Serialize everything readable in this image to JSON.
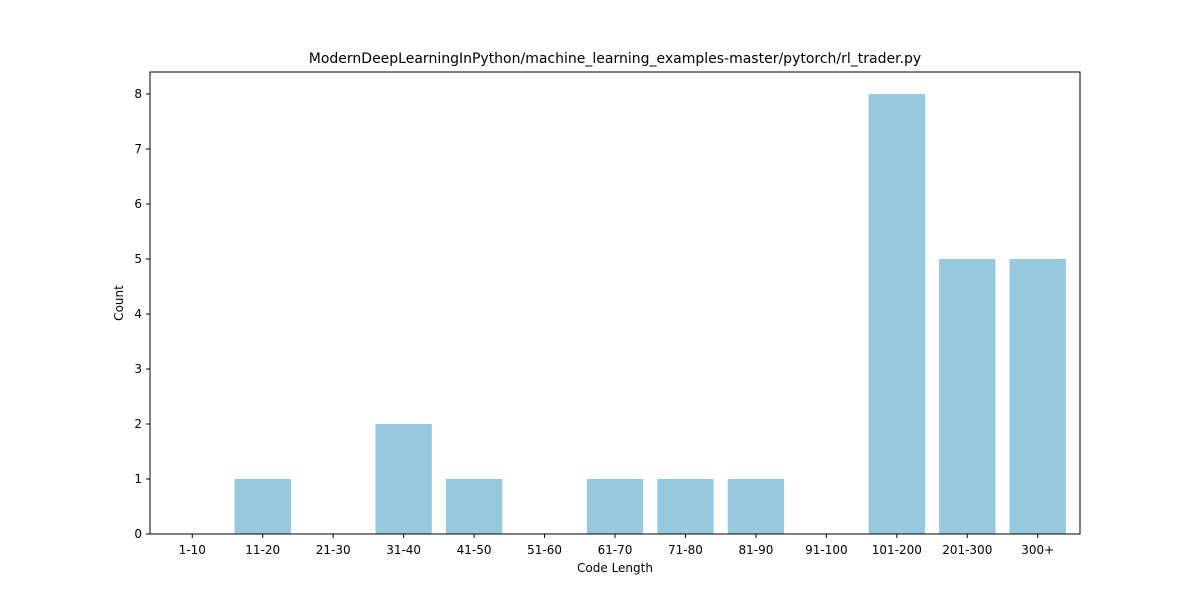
{
  "chart_data": {
    "type": "bar",
    "title": "ModernDeepLearningInPython/machine_learning_examples-master/pytorch/rl_trader.py",
    "xlabel": "Code Length",
    "ylabel": "Count",
    "categories": [
      "1-10",
      "11-20",
      "21-30",
      "31-40",
      "41-50",
      "51-60",
      "61-70",
      "71-80",
      "81-90",
      "91-100",
      "101-200",
      "201-300",
      "300+"
    ],
    "values": [
      0,
      1,
      0,
      2,
      1,
      0,
      1,
      1,
      1,
      0,
      8,
      5,
      5
    ],
    "ylim": [
      0,
      8.4
    ],
    "yticks": [
      0,
      1,
      2,
      3,
      4,
      5,
      6,
      7,
      8
    ],
    "grid": false,
    "legend": "none",
    "bar_color": "#96c9de",
    "axis_color": "#000000"
  }
}
